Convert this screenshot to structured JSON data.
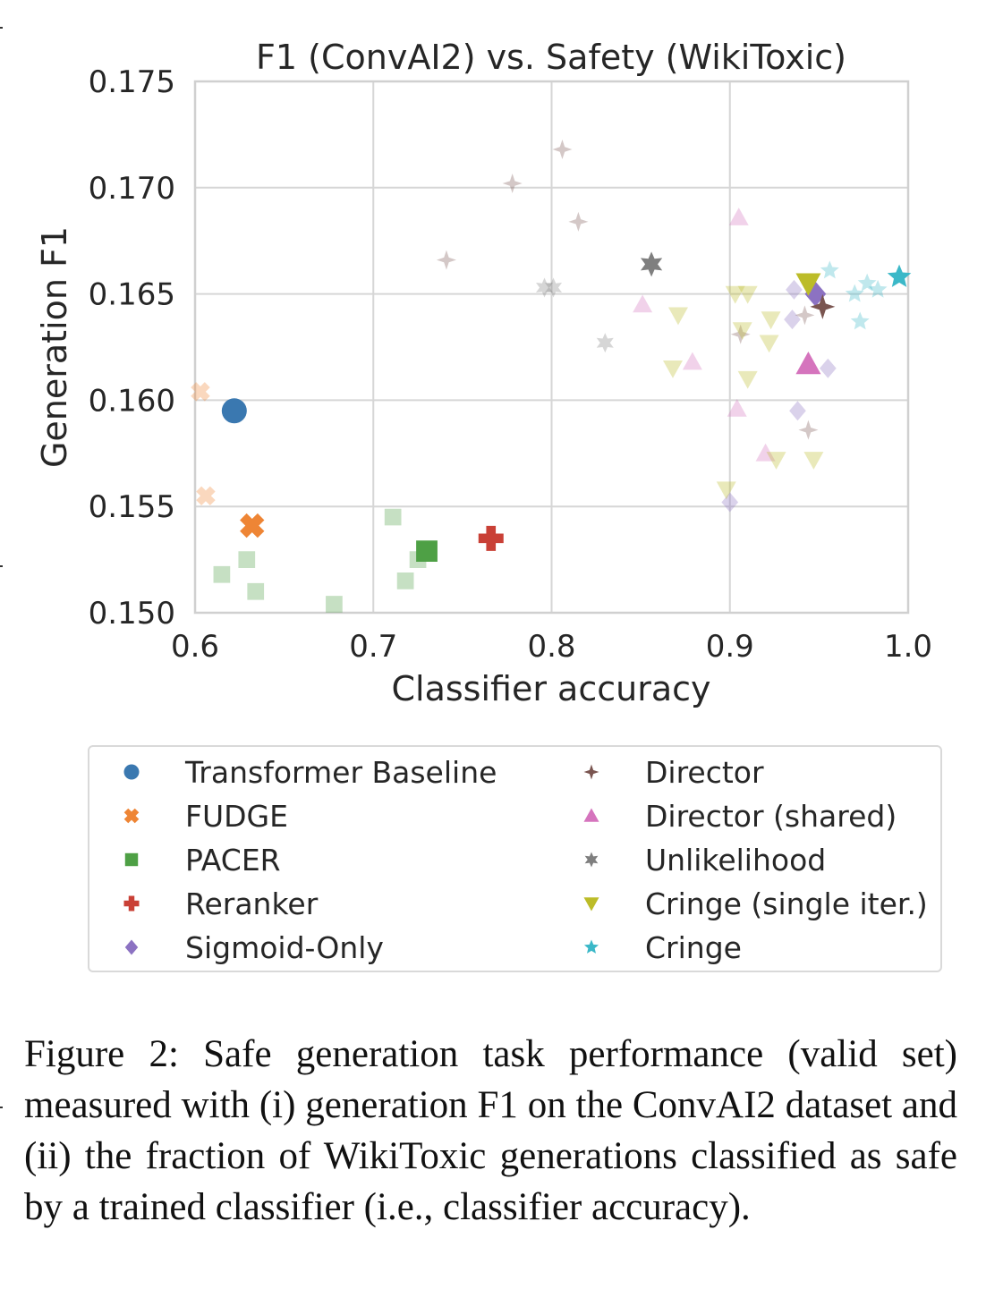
{
  "chart_data": {
    "type": "scatter",
    "title": "F1 (ConvAI2) vs. Safety (WikiToxic)",
    "xlabel": "Classifier accuracy",
    "ylabel": "Generation F1",
    "xlim": [
      0.6,
      1.0
    ],
    "ylim": [
      0.15,
      0.175
    ],
    "xticks": [
      "0.6",
      "0.7",
      "0.8",
      "0.9",
      "1.0"
    ],
    "yticks": [
      "0.150",
      "0.155",
      "0.160",
      "0.165",
      "0.170",
      "0.175"
    ],
    "grid": true,
    "legend_position": "below",
    "series": [
      {
        "name": "Transformer Baseline",
        "marker": "circle",
        "color": "#3a78b0",
        "best": [
          [
            0.622,
            0.1595
          ]
        ],
        "points": []
      },
      {
        "name": "FUDGE",
        "marker": "x",
        "color": "#ee8535",
        "best": [
          [
            0.632,
            0.1541
          ]
        ],
        "points": [
          [
            0.603,
            0.1604
          ],
          [
            0.606,
            0.1555
          ]
        ]
      },
      {
        "name": "PACER",
        "marker": "square",
        "color": "#4ea045",
        "best": [
          [
            0.73,
            0.1529
          ]
        ],
        "points": [
          [
            0.615,
            0.1518
          ],
          [
            0.629,
            0.1525
          ],
          [
            0.634,
            0.151
          ],
          [
            0.678,
            0.1504
          ],
          [
            0.711,
            0.1545
          ],
          [
            0.718,
            0.1515
          ],
          [
            0.725,
            0.1525
          ]
        ]
      },
      {
        "name": "Reranker",
        "marker": "plus",
        "color": "#c94036",
        "best": [
          [
            0.766,
            0.1535
          ]
        ],
        "points": []
      },
      {
        "name": "Sigmoid-Only",
        "marker": "diamond",
        "color": "#8c72c2",
        "best": [
          [
            0.948,
            0.165
          ]
        ],
        "points": [
          [
            0.936,
            0.1652
          ],
          [
            0.935,
            0.1638
          ],
          [
            0.938,
            0.1595
          ],
          [
            0.955,
            0.1615
          ],
          [
            0.9,
            0.1552
          ]
        ]
      },
      {
        "name": "Director",
        "marker": "star4",
        "color": "#7a5550",
        "best": [
          [
            0.952,
            0.1644
          ]
        ],
        "points": [
          [
            0.806,
            0.1718
          ],
          [
            0.778,
            0.1702
          ],
          [
            0.815,
            0.1684
          ],
          [
            0.741,
            0.1666
          ],
          [
            0.906,
            0.1631
          ],
          [
            0.942,
            0.164
          ],
          [
            0.944,
            0.1586
          ]
        ]
      },
      {
        "name": "Director (shared)",
        "marker": "triangle-up",
        "color": "#d574bd",
        "best": [
          [
            0.944,
            0.1617
          ]
        ],
        "points": [
          [
            0.905,
            0.1686
          ],
          [
            0.851,
            0.1645
          ],
          [
            0.879,
            0.1618
          ],
          [
            0.904,
            0.1596
          ],
          [
            0.92,
            0.1575
          ]
        ]
      },
      {
        "name": "Unlikelihood",
        "marker": "star6",
        "color": "#7f7f7f",
        "best": [
          [
            0.856,
            0.1664
          ]
        ],
        "points": [
          [
            0.796,
            0.1653
          ],
          [
            0.801,
            0.1653
          ],
          [
            0.83,
            0.1627
          ]
        ]
      },
      {
        "name": "Cringe (single iter.)",
        "marker": "triangle-down",
        "color": "#bcbc28",
        "best": [
          [
            0.944,
            0.1655
          ]
        ],
        "points": [
          [
            0.903,
            0.165
          ],
          [
            0.91,
            0.165
          ],
          [
            0.871,
            0.164
          ],
          [
            0.907,
            0.1633
          ],
          [
            0.923,
            0.1638
          ],
          [
            0.922,
            0.1627
          ],
          [
            0.868,
            0.1615
          ],
          [
            0.91,
            0.161
          ],
          [
            0.926,
            0.1572
          ],
          [
            0.947,
            0.1572
          ],
          [
            0.898,
            0.1558
          ]
        ]
      },
      {
        "name": "Cringe",
        "marker": "star5",
        "color": "#3bb8c8",
        "best": [
          [
            0.995,
            0.1658
          ]
        ],
        "points": [
          [
            0.956,
            0.1661
          ],
          [
            0.97,
            0.165
          ],
          [
            0.977,
            0.1655
          ],
          [
            0.983,
            0.1652
          ],
          [
            0.973,
            0.1637
          ]
        ]
      }
    ]
  },
  "caption": "Figure 2:  Safe generation task performance (valid set) measured with (i) generation F1 on the ConvAI2 dataset and (ii) the fraction of WikiToxic generations classified as safe by a trained classifier (i.e., classifier accuracy)."
}
